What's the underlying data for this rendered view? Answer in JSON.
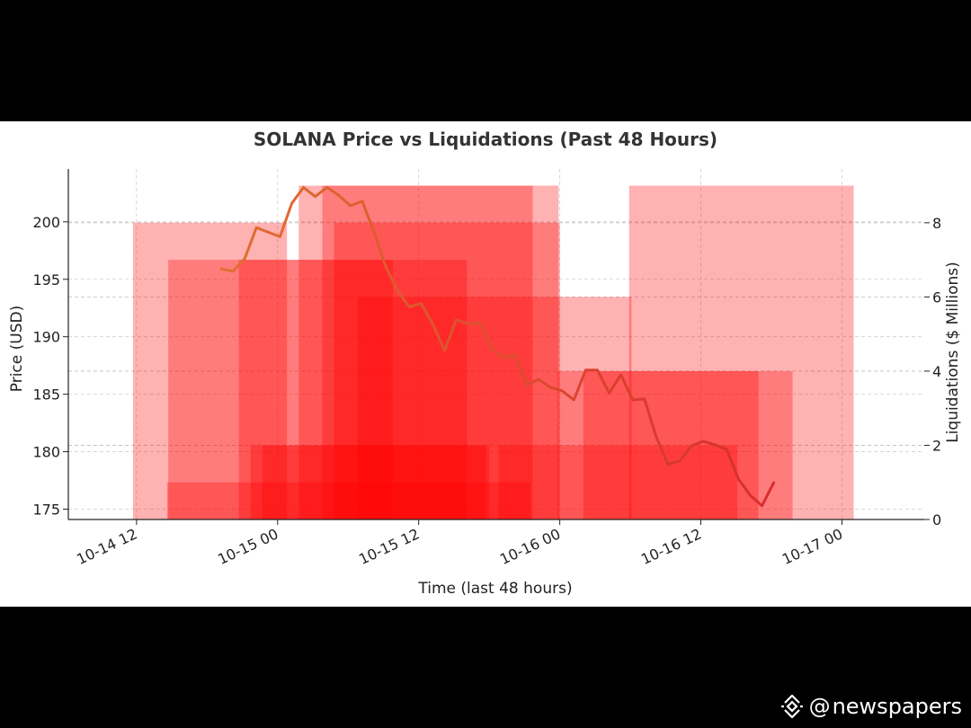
{
  "chart_data": {
    "type": "bar+line",
    "title": "SOLANA Price vs Liquidations (Past 48 Hours)",
    "xlabel": "Time (last 48 hours)",
    "ylabel_left": "Price (USD)",
    "ylabel_right": "Liquidations ($ Millions)",
    "x_ticks": [
      {
        "label": "10-14 12",
        "t": 0
      },
      {
        "label": "10-15 00",
        "t": 12
      },
      {
        "label": "10-15 12",
        "t": 24
      },
      {
        "label": "10-16 00",
        "t": 36
      },
      {
        "label": "10-16 12",
        "t": 48
      },
      {
        "label": "10-17 00",
        "t": 60
      }
    ],
    "y_left_ticks": [
      "175",
      "180",
      "185",
      "190",
      "195",
      "200"
    ],
    "y_right_ticks": [
      "0",
      "2",
      "4",
      "6",
      "8"
    ],
    "xlim_hours": [
      -5.8,
      67
    ],
    "ylim_price": [
      174.1,
      204.6
    ],
    "ylim_liquidations": [
      0,
      9.45
    ],
    "grid": true,
    "bar_color": "#ff0000",
    "bar_opacity": 0.3,
    "line_color_start": "#e07030",
    "line_color_end": "#d72d2d",
    "liquidation_bars": [
      {
        "start_h": 2.6,
        "end_h": 33.5,
        "value": 1.0
      },
      {
        "start_h": -0.3,
        "end_h": 12.8,
        "value": 8.0
      },
      {
        "start_h": 2.7,
        "end_h": 28.1,
        "value": 7.0
      },
      {
        "start_h": 8.7,
        "end_h": 21.8,
        "value": 7.0
      },
      {
        "start_h": 9.7,
        "end_h": 29.7,
        "value": 2.0
      },
      {
        "start_h": 13.8,
        "end_h": 33.7,
        "value": 9.0
      },
      {
        "start_h": 15.8,
        "end_h": 35.9,
        "value": 9.0
      },
      {
        "start_h": 16.8,
        "end_h": 36.0,
        "value": 8.0
      },
      {
        "start_h": 18.8,
        "end_h": 42.1,
        "value": 6.0
      },
      {
        "start_h": 10.7,
        "end_h": 30.0,
        "value": 2.0
      },
      {
        "start_h": 30.8,
        "end_h": 51.1,
        "value": 2.0
      },
      {
        "start_h": 35.8,
        "end_h": 52.9,
        "value": 4.0
      },
      {
        "start_h": 41.9,
        "end_h": 61.0,
        "value": 9.0
      },
      {
        "start_h": 38.0,
        "end_h": 55.8,
        "value": 4.0
      }
    ],
    "price_series": {
      "hours": [
        7.2,
        8.2,
        9.2,
        10.2,
        11.2,
        12.2,
        13.2,
        14.2,
        15.2,
        16.2,
        17.2,
        18.2,
        19.2,
        20.2,
        21.2,
        22.2,
        23.2,
        24.2,
        25.2,
        26.2,
        27.2,
        28.2,
        29.2,
        30.2,
        31.2,
        32.2,
        33.2,
        34.2,
        35.2,
        36.2,
        37.2,
        38.2,
        39.2,
        40.2,
        41.2,
        42.2,
        43.2,
        44.2,
        45.2,
        46.2,
        47.2,
        48.2,
        49.2,
        50.2,
        51.2,
        52.2,
        53.2,
        54.2,
        55.2
      ],
      "prices": [
        195.9,
        195.7,
        196.8,
        199.5,
        199.1,
        198.7,
        201.6,
        203.0,
        202.2,
        203.0,
        202.3,
        201.4,
        201.8,
        199.1,
        196.1,
        194.0,
        192.6,
        192.9,
        191.1,
        188.8,
        191.5,
        191.1,
        191.2,
        189.0,
        188.2,
        188.4,
        185.8,
        186.3,
        185.6,
        185.3,
        184.5,
        187.1,
        187.1,
        185.1,
        186.7,
        184.5,
        184.6,
        181.3,
        178.9,
        179.2,
        180.5,
        180.9,
        180.6,
        180.2,
        177.6,
        176.2,
        175.3,
        177.3,
        null
      ]
    }
  },
  "watermark": {
    "symbol": "@",
    "text": "newspapers"
  }
}
